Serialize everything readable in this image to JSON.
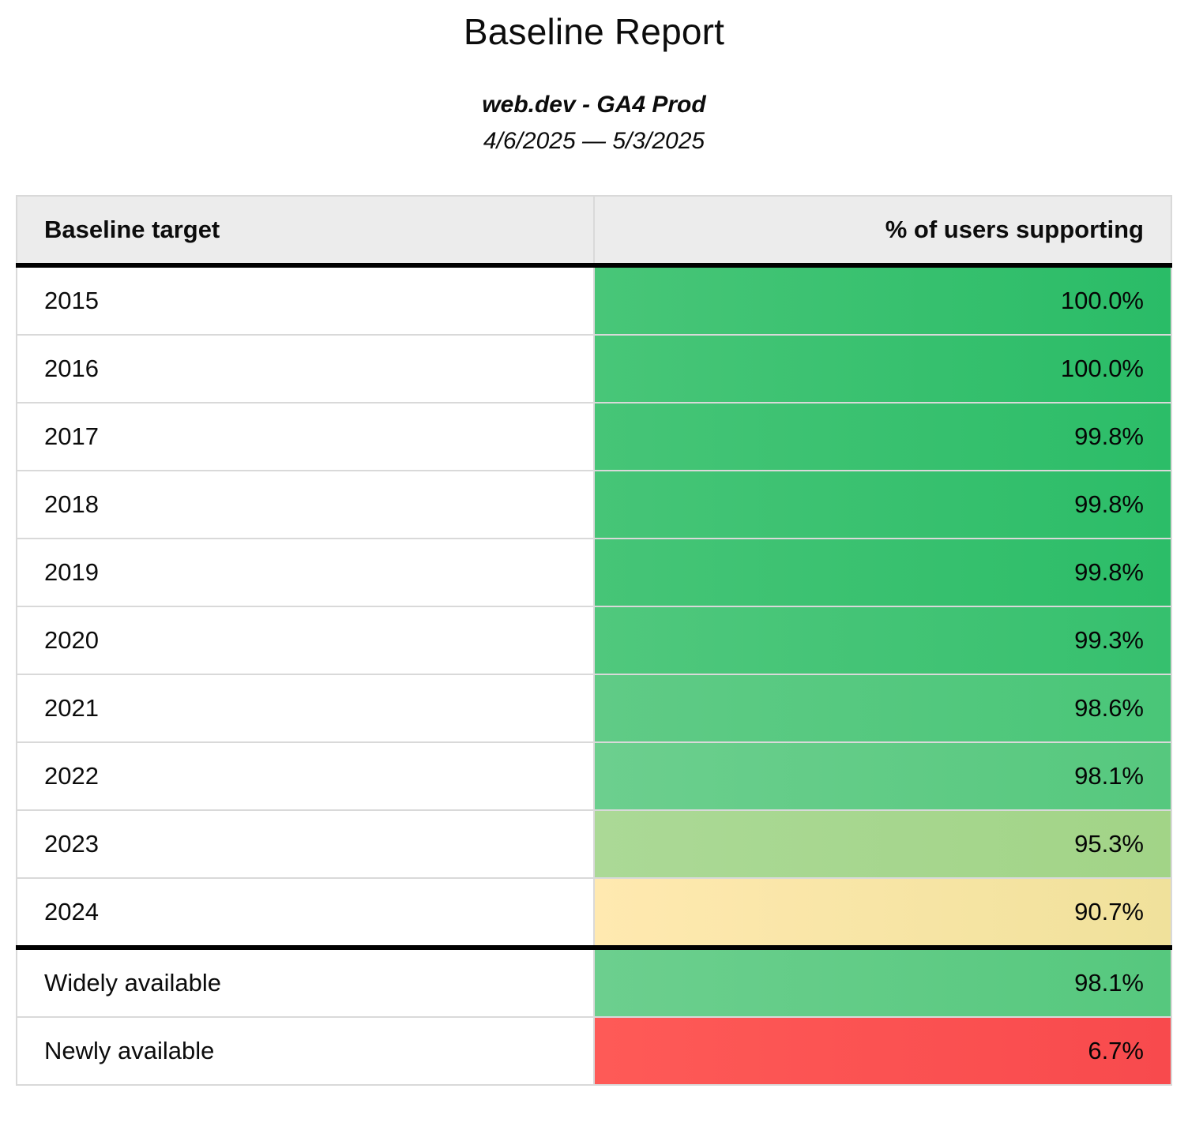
{
  "header": {
    "title": "Baseline Report",
    "subtitle": "web.dev - GA4 Prod",
    "date_range": "4/6/2025 — 5/3/2025"
  },
  "theme": {
    "header_bg": "#ececec",
    "grid": "#d9d9d9",
    "divider": "#000000",
    "good_green": "#2bbc67",
    "warn_yellow": "#f0e19b",
    "bad_red": "#f84a4d"
  },
  "table": {
    "columns": [
      {
        "label": "Baseline target"
      },
      {
        "label": "% of users supporting"
      }
    ],
    "rows": [
      {
        "target": "2015",
        "value": "100.0%",
        "color_left": "#48c678",
        "color_right": "#2abc67",
        "divider_above": false
      },
      {
        "target": "2016",
        "value": "100.0%",
        "color_left": "#48c678",
        "color_right": "#2abc67",
        "divider_above": false
      },
      {
        "target": "2017",
        "value": "99.8%",
        "color_left": "#46c577",
        "color_right": "#2cbd68",
        "divider_above": false
      },
      {
        "target": "2018",
        "value": "99.8%",
        "color_left": "#46c577",
        "color_right": "#2cbd68",
        "divider_above": false
      },
      {
        "target": "2019",
        "value": "99.8%",
        "color_left": "#46c577",
        "color_right": "#2cbd68",
        "divider_above": false
      },
      {
        "target": "2020",
        "value": "99.3%",
        "color_left": "#50c87d",
        "color_right": "#36c06e",
        "divider_above": false
      },
      {
        "target": "2021",
        "value": "98.6%",
        "color_left": "#60cb86",
        "color_right": "#49c678",
        "divider_above": false
      },
      {
        "target": "2022",
        "value": "98.1%",
        "color_left": "#6ccf8e",
        "color_right": "#56c87e",
        "divider_above": false
      },
      {
        "target": "2023",
        "value": "95.3%",
        "color_left": "#abd996",
        "color_right": "#a2d487",
        "divider_above": false
      },
      {
        "target": "2024",
        "value": "90.7%",
        "color_left": "#ffe9b0",
        "color_right": "#f0e19b",
        "divider_above": false
      },
      {
        "target": "Widely available",
        "value": "98.1%",
        "color_left": "#6ccf8e",
        "color_right": "#56c87e",
        "divider_above": true
      },
      {
        "target": "Newly available",
        "value": "6.7%",
        "color_left": "#fe5a57",
        "color_right": "#f84a4d",
        "divider_above": false
      }
    ]
  },
  "chart_data": {
    "type": "table",
    "title": "Baseline Report",
    "subtitle": "web.dev - GA4 Prod",
    "date_range": "4/6/2025 — 5/3/2025",
    "categories": [
      "2015",
      "2016",
      "2017",
      "2018",
      "2019",
      "2020",
      "2021",
      "2022",
      "2023",
      "2024",
      "Widely available",
      "Newly available"
    ],
    "values": [
      100.0,
      100.0,
      99.8,
      99.8,
      99.8,
      99.3,
      98.6,
      98.1,
      95.3,
      90.7,
      98.1,
      6.7
    ],
    "value_unit": "%",
    "columns": [
      "Baseline target",
      "% of users supporting"
    ]
  }
}
